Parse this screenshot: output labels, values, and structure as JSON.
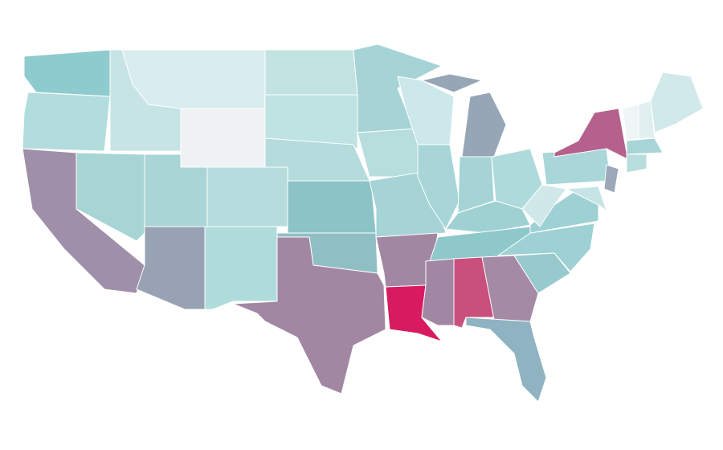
{
  "map": {
    "type": "choropleth",
    "stroke": "#ffffff",
    "regions": [
      {
        "color": "#8ecbce"
      },
      {
        "color": "#b2dcdd"
      },
      {
        "color": "#a08fa8"
      },
      {
        "color": "#a7d5d6"
      },
      {
        "color": "#c6e4e6"
      },
      {
        "color": "#d8edef"
      },
      {
        "color": "#eef2f3"
      },
      {
        "color": "#a9d5d6"
      },
      {
        "color": "#b6dcdd"
      },
      {
        "color": "#99a2b3"
      },
      {
        "color": "#b0dcdc"
      },
      {
        "color": "#c3e3e3"
      },
      {
        "color": "#bfe2e2"
      },
      {
        "color": "#b5dbdc"
      },
      {
        "color": "#8bc3c6"
      },
      {
        "color": "#8fbfc2"
      },
      {
        "color": "#a287a3"
      },
      {
        "color": "#a6d4d6"
      },
      {
        "color": "#b7dddd"
      },
      {
        "color": "#a6d3d6"
      },
      {
        "color": "#a287a3"
      },
      {
        "color": "#d81b60"
      },
      {
        "color": "#cde8eb"
      },
      {
        "color": "#a7d5d8"
      },
      {
        "color": "#97a6b6"
      },
      {
        "color": "#97a6b6"
      },
      {
        "color": "#a6d4d6"
      },
      {
        "color": "#aedadb"
      },
      {
        "color": "#9fd1d3"
      },
      {
        "color": "#8ec8cb"
      },
      {
        "color": "#a187a3"
      },
      {
        "color": "#c94f7c"
      },
      {
        "color": "#a58aa6"
      },
      {
        "color": "#8fb3c0"
      },
      {
        "color": "#98cacd"
      },
      {
        "color": "#9ed1d3"
      },
      {
        "color": "#9dd1d3"
      },
      {
        "color": "#d0e8ea"
      },
      {
        "color": "#a9d6d8"
      },
      {
        "color": "#b5608d"
      },
      {
        "color": "#9aa8b8"
      },
      {
        "color": "#c6e4e6"
      },
      {
        "color": "#a7d5d8"
      },
      {
        "color": "#b7dddd"
      },
      {
        "color": "#eff5f5"
      },
      {
        "color": "#e0efef"
      },
      {
        "color": "#d2e9eb"
      }
    ]
  }
}
